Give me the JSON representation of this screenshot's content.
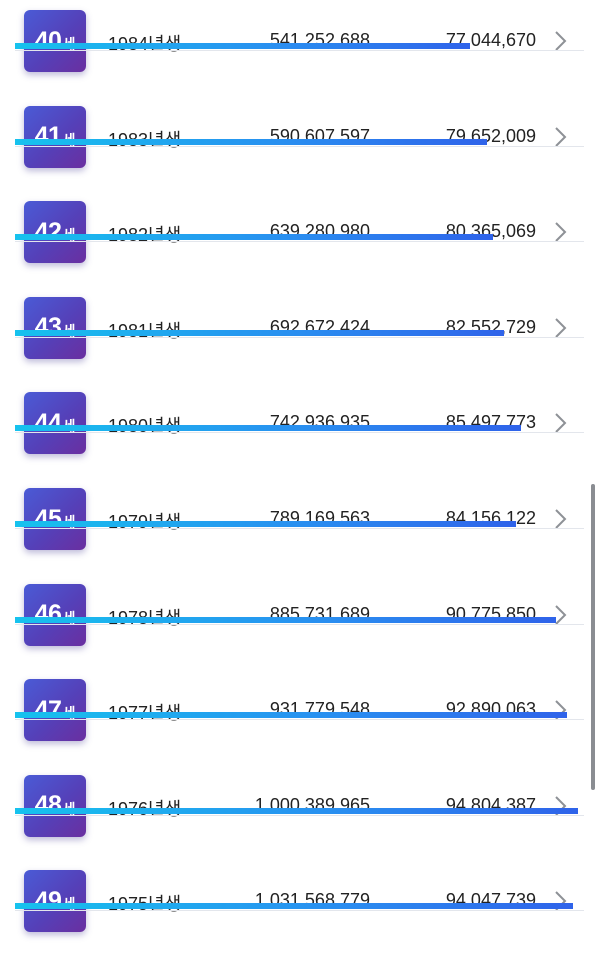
{
  "age_unit": "세",
  "rows": [
    {
      "age": "40",
      "year": "1984년생",
      "amount": "541,252,688",
      "average": "77,044,670",
      "bar_fraction": 0.8
    },
    {
      "age": "41",
      "year": "1983년생",
      "amount": "590,607,597",
      "average": "79,652,009",
      "bar_fraction": 0.83
    },
    {
      "age": "42",
      "year": "1982년생",
      "amount": "639,280,980",
      "average": "80,365,069",
      "bar_fraction": 0.84
    },
    {
      "age": "43",
      "year": "1981년생",
      "amount": "692,672,424",
      "average": "82,552,729",
      "bar_fraction": 0.86
    },
    {
      "age": "44",
      "year": "1980년생",
      "amount": "742,936,935",
      "average": "85,497,773",
      "bar_fraction": 0.89
    },
    {
      "age": "45",
      "year": "1979년생",
      "amount": "789,169,563",
      "average": "84,156,122",
      "bar_fraction": 0.88
    },
    {
      "age": "46",
      "year": "1978년생",
      "amount": "885,731,689",
      "average": "90,775,850",
      "bar_fraction": 0.95
    },
    {
      "age": "47",
      "year": "1977년생",
      "amount": "931,779,548",
      "average": "92,890,063",
      "bar_fraction": 0.97
    },
    {
      "age": "48",
      "year": "1976년생",
      "amount": "1,000,389,965",
      "average": "94,804,387",
      "bar_fraction": 0.99
    },
    {
      "age": "49",
      "year": "1975년생",
      "amount": "1,031,568,779",
      "average": "94,047,739",
      "bar_fraction": 0.98
    }
  ]
}
